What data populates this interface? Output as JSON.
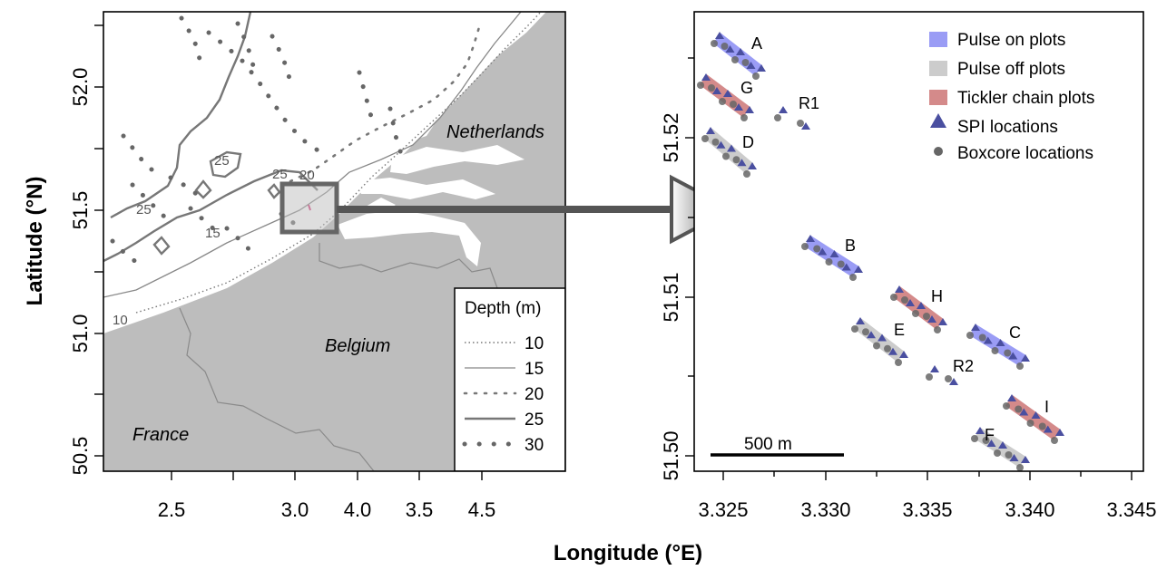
{
  "left_map": {
    "x_ticks": [
      "2.5",
      "3.0",
      "3.5",
      "4.0",
      "4.5"
    ],
    "y_ticks": [
      "50.5",
      "51.0",
      "51.5",
      "52.0"
    ],
    "countries": {
      "netherlands": "Netherlands",
      "belgium": "Belgium",
      "france": "France"
    },
    "contour_labels": [
      "25",
      "25",
      "25",
      "15",
      "10",
      "20"
    ],
    "depth_legend": {
      "title": "Depth (m)",
      "entries": [
        {
          "label": "10",
          "style": "fine-dotted"
        },
        {
          "label": "15",
          "style": "thin-solid"
        },
        {
          "label": "20",
          "style": "dotted"
        },
        {
          "label": "25",
          "style": "thick-solid"
        },
        {
          "label": "30",
          "style": "large-dots"
        }
      ]
    }
  },
  "right_map": {
    "x_ticks": [
      "3.325",
      "3.330",
      "3.335",
      "3.340",
      "3.345"
    ],
    "y_ticks": [
      "51.50",
      "51.51",
      "51.52"
    ],
    "scale_bar": "500 m",
    "legend": [
      {
        "label": "Pulse on plots",
        "color": "#9a9cf5",
        "symbol": "square"
      },
      {
        "label": "Pulse off plots",
        "color": "#cccccc",
        "symbol": "square"
      },
      {
        "label": "Tickler chain plots",
        "color": "#d48a8a",
        "symbol": "square"
      },
      {
        "label": "SPI locations",
        "color": "#4a4fa0",
        "symbol": "triangle"
      },
      {
        "label": "Boxcore locations",
        "color": "#666666",
        "symbol": "circle"
      }
    ],
    "plots": [
      {
        "label": "A",
        "treatment": "Pulse on plots"
      },
      {
        "label": "G",
        "treatment": "Tickler chain plots"
      },
      {
        "label": "D",
        "treatment": "Pulse off plots"
      },
      {
        "label": "R1",
        "treatment": "reference"
      },
      {
        "label": "B",
        "treatment": "Pulse on plots"
      },
      {
        "label": "H",
        "treatment": "Tickler chain plots"
      },
      {
        "label": "E",
        "treatment": "Pulse off plots"
      },
      {
        "label": "C",
        "treatment": "Pulse on plots"
      },
      {
        "label": "R2",
        "treatment": "reference"
      },
      {
        "label": "I",
        "treatment": "Tickler chain plots"
      },
      {
        "label": "F",
        "treatment": "Pulse off plots"
      }
    ]
  },
  "axes": {
    "ylabel": "Latitude (°N)",
    "xlabel": "Longitude (°E)"
  },
  "colors": {
    "land": "#bdbdbd",
    "sea": "#ffffff",
    "border": "#8a8a8a",
    "contour": "#888888",
    "arrow": "#555555"
  }
}
